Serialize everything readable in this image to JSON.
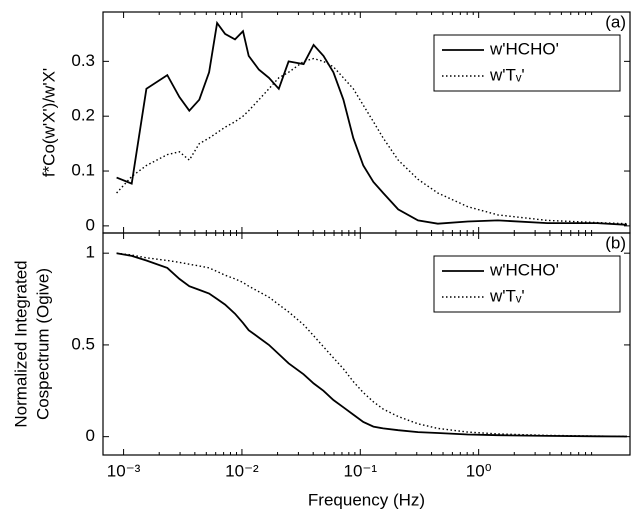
{
  "chart_data": [
    {
      "type": "line",
      "xscale": "log",
      "annotation": "(a)",
      "ylabel": [
        "f*Co(w'X')/w'X'"
      ],
      "x": [
        0.000873,
        0.00117,
        0.00156,
        0.00234,
        0.00296,
        0.00359,
        0.00436,
        0.00528,
        0.00617,
        0.0072,
        0.00873,
        0.0102,
        0.0114,
        0.0139,
        0.0169,
        0.0205,
        0.0248,
        0.0332,
        0.0403,
        0.0489,
        0.0593,
        0.072,
        0.0873,
        0.106,
        0.129,
        0.156,
        0.209,
        0.307,
        0.452,
        0.81,
        1.45,
        3.8,
        10,
        17.9
      ],
      "series": [
        {
          "name": "w'HCHO'",
          "color": "#000000",
          "dash": "solid",
          "values": [
            0.088,
            0.077,
            0.25,
            0.275,
            0.235,
            0.21,
            0.23,
            0.28,
            0.37,
            0.35,
            0.34,
            0.355,
            0.31,
            0.285,
            0.27,
            0.25,
            0.3,
            0.295,
            0.33,
            0.31,
            0.28,
            0.23,
            0.16,
            0.11,
            0.08,
            0.06,
            0.03,
            0.01,
            0.004,
            0.008,
            0.01,
            0.005,
            0.005,
            0.002
          ]
        },
        {
          "name": "w'Tᵥ'",
          "color": "#000000",
          "dash": "dotted",
          "values": [
            0.06,
            0.09,
            0.11,
            0.13,
            0.135,
            0.12,
            0.15,
            0.16,
            0.17,
            0.18,
            0.19,
            0.2,
            0.21,
            0.23,
            0.25,
            0.27,
            0.28,
            0.3,
            0.305,
            0.3,
            0.29,
            0.27,
            0.25,
            0.22,
            0.19,
            0.16,
            0.12,
            0.085,
            0.06,
            0.035,
            0.02,
            0.01,
            0.006,
            0.004
          ]
        }
      ],
      "xlim": [
        0.00067,
        19
      ],
      "xticks": [
        0.001,
        0.01,
        0.1,
        1
      ],
      "ylim": [
        -0.013,
        0.39
      ],
      "yticks": [
        0,
        0.1,
        0.2,
        0.3
      ],
      "legend": "upper right"
    },
    {
      "type": "line",
      "xscale": "log",
      "annotation": "(b)",
      "ylabel": [
        "Normalized Integrated",
        "Cospectrum (Ogive)"
      ],
      "xlabel": "Frequency (Hz)",
      "x": [
        0.000873,
        0.00117,
        0.00156,
        0.00234,
        0.00296,
        0.00359,
        0.00436,
        0.00528,
        0.00617,
        0.0072,
        0.00873,
        0.0102,
        0.0114,
        0.0139,
        0.0169,
        0.0205,
        0.0248,
        0.0332,
        0.0403,
        0.0489,
        0.0593,
        0.072,
        0.0873,
        0.106,
        0.129,
        0.156,
        0.209,
        0.307,
        0.452,
        0.81,
        1.45,
        3.8,
        10,
        17.9
      ],
      "series": [
        {
          "name": "w'HCHO'",
          "color": "#000000",
          "dash": "solid",
          "values": [
            1.0,
            0.985,
            0.96,
            0.92,
            0.86,
            0.82,
            0.8,
            0.78,
            0.75,
            0.72,
            0.67,
            0.62,
            0.58,
            0.54,
            0.5,
            0.45,
            0.4,
            0.34,
            0.29,
            0.25,
            0.2,
            0.16,
            0.12,
            0.08,
            0.055,
            0.045,
            0.035,
            0.025,
            0.02,
            0.012,
            0.008,
            0.004,
            0.002,
            0.001
          ]
        },
        {
          "name": "w'Tᵥ'",
          "color": "#000000",
          "dash": "dotted",
          "values": [
            1.0,
            0.99,
            0.975,
            0.96,
            0.95,
            0.94,
            0.93,
            0.92,
            0.9,
            0.88,
            0.86,
            0.84,
            0.82,
            0.79,
            0.76,
            0.72,
            0.68,
            0.61,
            0.55,
            0.49,
            0.43,
            0.37,
            0.3,
            0.24,
            0.19,
            0.15,
            0.11,
            0.07,
            0.045,
            0.025,
            0.015,
            0.007,
            0.003,
            0.002
          ]
        }
      ],
      "xlim": [
        0.00067,
        19
      ],
      "xticks": [
        {
          "value": 0.001,
          "label": "10⁻³"
        },
        {
          "value": 0.01,
          "label": "10⁻²"
        },
        {
          "value": 0.1,
          "label": "10⁻¹"
        },
        {
          "value": 1,
          "label": "10⁰"
        }
      ],
      "ylim": [
        -0.1,
        1.11
      ],
      "yticks": [
        0,
        0.5,
        1
      ],
      "legend": "upper right"
    }
  ]
}
